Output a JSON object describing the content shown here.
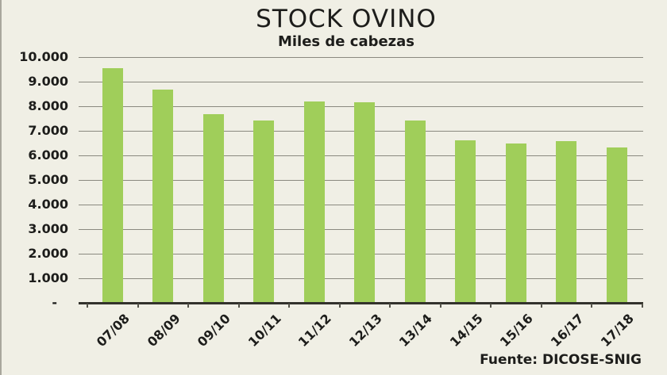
{
  "window": {
    "background": "#f0efe5",
    "left_border_color": "#a9a79d"
  },
  "chart_data": {
    "type": "bar",
    "title": "STOCK OVINO",
    "subtitle": "Miles de cabezas",
    "source": "Fuente: DICOSE-SNIG",
    "categories": [
      "07/08",
      "08/09",
      "09/10",
      "10/11",
      "11/12",
      "12/13",
      "13/14",
      "14/15",
      "15/16",
      "16/17",
      "17/18"
    ],
    "values": [
      9550,
      8670,
      7690,
      7430,
      8200,
      8150,
      7420,
      6610,
      6490,
      6570,
      6310
    ],
    "unit": "miles de cabezas",
    "xlabel": "",
    "ylabel": "",
    "ylim": [
      0,
      10000
    ],
    "ytick_step": 1000,
    "ytick_labels": [
      "-",
      "1.000",
      "2.000",
      "3.000",
      "4.000",
      "5.000",
      "6.000",
      "7.000",
      "8.000",
      "9.000",
      "10.000"
    ],
    "grid": "horizontal",
    "legend": "none",
    "bar_color": "#a0ce5a",
    "gridline_color": "#8a897f",
    "axis_color": "#33322c",
    "tick_color": "#55544b",
    "text_color": "#1d1d1b"
  }
}
